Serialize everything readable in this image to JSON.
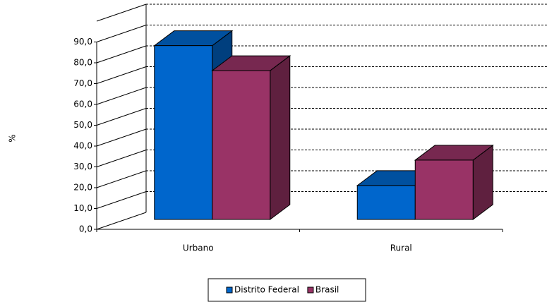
{
  "chart_data": {
    "type": "bar3d",
    "y_label": "%",
    "categories": [
      "Urbano",
      "Rural"
    ],
    "series": [
      {
        "name": "Distrito Federal",
        "color": "#0066cc",
        "values": [
          83.5,
          16.3
        ]
      },
      {
        "name": "Brasil",
        "color": "#993366",
        "values": [
          71.5,
          28.5
        ]
      }
    ],
    "ylim": [
      0,
      100
    ],
    "yticks": [
      {
        "value": 0,
        "label": "0,0"
      },
      {
        "value": 10,
        "label": "10,0"
      },
      {
        "value": 20,
        "label": "20,0"
      },
      {
        "value": 30,
        "label": "30,0"
      },
      {
        "value": 40,
        "label": "40,0"
      },
      {
        "value": 50,
        "label": "50,0"
      },
      {
        "value": 60,
        "label": "60,0"
      },
      {
        "value": 70,
        "label": "70,0"
      },
      {
        "value": 80,
        "label": "80,0"
      },
      {
        "value": 90,
        "label": "90,0"
      }
    ],
    "grid": true,
    "legend": "bottom"
  }
}
